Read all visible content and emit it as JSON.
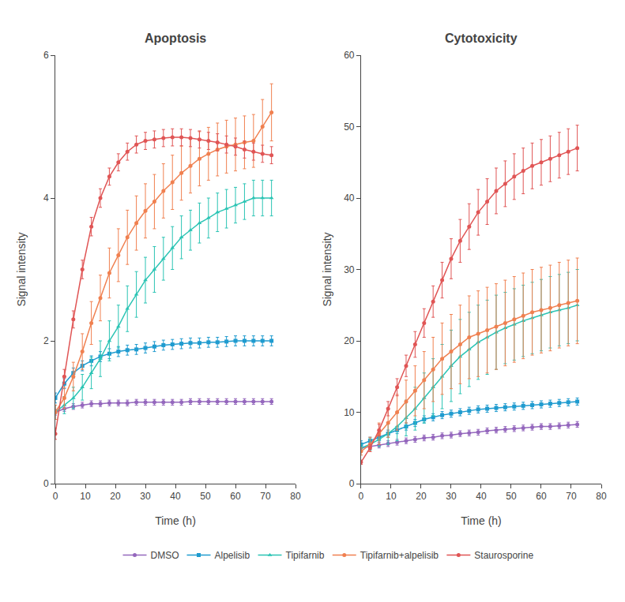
{
  "chart_data": [
    {
      "type": "line",
      "title": "Apoptosis",
      "x_label": "Time (h)",
      "y_label": "Signal intensity",
      "x": [
        0,
        3,
        6,
        9,
        12,
        15,
        18,
        21,
        24,
        27,
        30,
        33,
        36,
        39,
        42,
        45,
        48,
        51,
        54,
        57,
        60,
        63,
        66,
        69,
        72
      ],
      "xlim": [
        0,
        80
      ],
      "xticks": [
        0,
        10,
        20,
        30,
        40,
        50,
        60,
        70,
        80
      ],
      "ylim": [
        0,
        6
      ],
      "yticks": [
        0,
        2,
        4,
        6
      ],
      "grid": false,
      "legend": "bottom",
      "series": [
        {
          "name": "DMSO",
          "color": "#9467bd",
          "marker": "circle",
          "values": [
            1.0,
            1.05,
            1.08,
            1.1,
            1.12,
            1.12,
            1.13,
            1.13,
            1.13,
            1.14,
            1.14,
            1.14,
            1.14,
            1.14,
            1.14,
            1.15,
            1.15,
            1.15,
            1.15,
            1.15,
            1.15,
            1.15,
            1.15,
            1.15,
            1.15
          ],
          "error": [
            0.04,
            0.04,
            0.04,
            0.04,
            0.04,
            0.04,
            0.04,
            0.04,
            0.04,
            0.04,
            0.04,
            0.04,
            0.04,
            0.04,
            0.04,
            0.04,
            0.04,
            0.04,
            0.04,
            0.04,
            0.04,
            0.04,
            0.04,
            0.04,
            0.04
          ]
        },
        {
          "name": "Alpelisib",
          "color": "#1f9bcf",
          "marker": "square",
          "values": [
            1.2,
            1.4,
            1.55,
            1.65,
            1.72,
            1.78,
            1.82,
            1.85,
            1.87,
            1.88,
            1.9,
            1.92,
            1.94,
            1.95,
            1.96,
            1.97,
            1.97,
            1.98,
            1.98,
            1.99,
            2.0,
            2.0,
            2.0,
            2.0,
            2.0
          ],
          "error": [
            0.07,
            0.07,
            0.07,
            0.07,
            0.07,
            0.07,
            0.07,
            0.07,
            0.07,
            0.07,
            0.07,
            0.07,
            0.07,
            0.07,
            0.07,
            0.07,
            0.07,
            0.07,
            0.07,
            0.07,
            0.07,
            0.07,
            0.07,
            0.07,
            0.07
          ]
        },
        {
          "name": "Tipifarnib",
          "color": "#2bc4b4",
          "marker": "triangle-up",
          "values": [
            1.0,
            1.1,
            1.2,
            1.35,
            1.55,
            1.75,
            2.0,
            2.2,
            2.45,
            2.65,
            2.85,
            3.0,
            3.15,
            3.3,
            3.45,
            3.55,
            3.65,
            3.72,
            3.8,
            3.85,
            3.9,
            3.95,
            4.0,
            4.0,
            4.0
          ],
          "error": [
            0.1,
            0.12,
            0.15,
            0.18,
            0.22,
            0.25,
            0.28,
            0.3,
            0.32,
            0.32,
            0.32,
            0.32,
            0.3,
            0.3,
            0.3,
            0.28,
            0.28,
            0.28,
            0.27,
            0.27,
            0.25,
            0.25,
            0.25,
            0.25,
            0.25
          ]
        },
        {
          "name": "Tipifarnib+alpelisib",
          "color": "#f08050",
          "marker": "circle",
          "values": [
            1.0,
            1.2,
            1.5,
            1.85,
            2.25,
            2.6,
            2.95,
            3.2,
            3.45,
            3.65,
            3.82,
            3.95,
            4.1,
            4.22,
            4.35,
            4.45,
            4.55,
            4.62,
            4.68,
            4.72,
            4.75,
            4.78,
            4.8,
            5.0,
            5.2
          ],
          "error": [
            0.1,
            0.15,
            0.2,
            0.25,
            0.3,
            0.32,
            0.35,
            0.37,
            0.38,
            0.38,
            0.38,
            0.38,
            0.38,
            0.38,
            0.38,
            0.38,
            0.38,
            0.37,
            0.37,
            0.37,
            0.37,
            0.37,
            0.37,
            0.38,
            0.4
          ]
        },
        {
          "name": "Staurosporine",
          "color": "#e05555",
          "marker": "circle",
          "values": [
            0.7,
            1.5,
            2.3,
            3.0,
            3.6,
            4.0,
            4.3,
            4.5,
            4.65,
            4.75,
            4.8,
            4.82,
            4.84,
            4.85,
            4.85,
            4.84,
            4.82,
            4.8,
            4.78,
            4.75,
            4.72,
            4.68,
            4.65,
            4.62,
            4.6
          ],
          "error": [
            0.08,
            0.1,
            0.12,
            0.13,
            0.13,
            0.13,
            0.12,
            0.12,
            0.12,
            0.12,
            0.12,
            0.12,
            0.12,
            0.12,
            0.12,
            0.12,
            0.12,
            0.12,
            0.12,
            0.12,
            0.12,
            0.12,
            0.12,
            0.12,
            0.12
          ]
        }
      ]
    },
    {
      "type": "line",
      "title": "Cytotoxicity",
      "x_label": "Time (h)",
      "y_label": "Signal intensity",
      "x": [
        0,
        3,
        6,
        9,
        12,
        15,
        18,
        21,
        24,
        27,
        30,
        33,
        36,
        39,
        42,
        45,
        48,
        51,
        54,
        57,
        60,
        63,
        66,
        69,
        72
      ],
      "xlim": [
        0,
        80
      ],
      "xticks": [
        0,
        10,
        20,
        30,
        40,
        50,
        60,
        70,
        80
      ],
      "ylim": [
        0,
        60
      ],
      "yticks": [
        0,
        10,
        20,
        30,
        40,
        50,
        60
      ],
      "grid": false,
      "legend": "bottom",
      "series": [
        {
          "name": "DMSO",
          "color": "#9467bd",
          "marker": "circle",
          "values": [
            5.0,
            5.2,
            5.4,
            5.6,
            5.8,
            6.0,
            6.2,
            6.4,
            6.5,
            6.7,
            6.8,
            7.0,
            7.1,
            7.2,
            7.4,
            7.5,
            7.6,
            7.7,
            7.8,
            7.9,
            8.0,
            8.0,
            8.1,
            8.2,
            8.3
          ],
          "error": [
            0.4,
            0.4,
            0.4,
            0.4,
            0.4,
            0.4,
            0.4,
            0.4,
            0.4,
            0.4,
            0.4,
            0.4,
            0.4,
            0.4,
            0.4,
            0.4,
            0.4,
            0.4,
            0.4,
            0.4,
            0.4,
            0.4,
            0.4,
            0.4,
            0.4
          ]
        },
        {
          "name": "Alpelisib",
          "color": "#1f9bcf",
          "marker": "square",
          "values": [
            5.5,
            6.0,
            6.5,
            7.0,
            7.5,
            8.0,
            8.5,
            9.0,
            9.3,
            9.6,
            9.8,
            10.0,
            10.2,
            10.4,
            10.5,
            10.6,
            10.7,
            10.8,
            10.9,
            11.0,
            11.1,
            11.2,
            11.3,
            11.4,
            11.5
          ],
          "error": [
            0.5,
            0.5,
            0.5,
            0.5,
            0.5,
            0.5,
            0.5,
            0.5,
            0.5,
            0.5,
            0.5,
            0.5,
            0.5,
            0.5,
            0.5,
            0.5,
            0.5,
            0.5,
            0.5,
            0.5,
            0.5,
            0.5,
            0.5,
            0.5,
            0.5
          ]
        },
        {
          "name": "Tipifarnib",
          "color": "#2bc4b4",
          "marker": "triangle-up",
          "values": [
            5.0,
            5.5,
            6.2,
            7.0,
            8.0,
            9.2,
            10.5,
            12.0,
            13.5,
            15.0,
            16.5,
            17.8,
            18.8,
            19.8,
            20.5,
            21.2,
            21.8,
            22.3,
            22.8,
            23.2,
            23.6,
            24.0,
            24.3,
            24.6,
            25.0
          ],
          "error": [
            0.5,
            0.8,
            1.0,
            1.5,
            2.0,
            2.5,
            3.0,
            3.5,
            4.0,
            4.5,
            5.0,
            5.2,
            5.2,
            5.2,
            5.2,
            5.2,
            5.0,
            5.0,
            5.0,
            5.0,
            5.0,
            5.0,
            5.0,
            5.0,
            5.0
          ]
        },
        {
          "name": "Tipifarnib+alpelisib",
          "color": "#f08050",
          "marker": "circle",
          "values": [
            4.5,
            5.5,
            7.0,
            8.5,
            10.0,
            11.5,
            13.0,
            14.5,
            16.0,
            17.5,
            18.5,
            19.5,
            20.5,
            21.0,
            21.5,
            22.0,
            22.5,
            23.0,
            23.5,
            24.0,
            24.3,
            24.6,
            25.0,
            25.3,
            25.6
          ],
          "error": [
            0.5,
            1.0,
            1.5,
            2.0,
            2.5,
            3.0,
            3.5,
            4.0,
            4.5,
            5.0,
            5.2,
            5.5,
            5.8,
            6.0,
            6.0,
            6.0,
            6.0,
            6.0,
            6.0,
            6.0,
            6.0,
            6.0,
            6.0,
            6.0,
            6.0
          ]
        },
        {
          "name": "Staurosporine",
          "color": "#e05555",
          "marker": "circle",
          "values": [
            3.0,
            5.0,
            7.5,
            10.5,
            13.5,
            16.5,
            19.5,
            22.5,
            25.5,
            28.5,
            31.5,
            34.0,
            36.0,
            38.0,
            39.5,
            41.0,
            42.0,
            43.0,
            43.8,
            44.5,
            45.0,
            45.5,
            46.0,
            46.5,
            47.0
          ],
          "error": [
            0.3,
            0.5,
            0.8,
            1.0,
            1.2,
            1.5,
            1.8,
            2.0,
            2.2,
            2.5,
            2.8,
            3.0,
            3.2,
            3.2,
            3.2,
            3.2,
            3.2,
            3.2,
            3.2,
            3.2,
            3.2,
            3.2,
            3.2,
            3.2,
            3.2
          ]
        }
      ]
    }
  ]
}
